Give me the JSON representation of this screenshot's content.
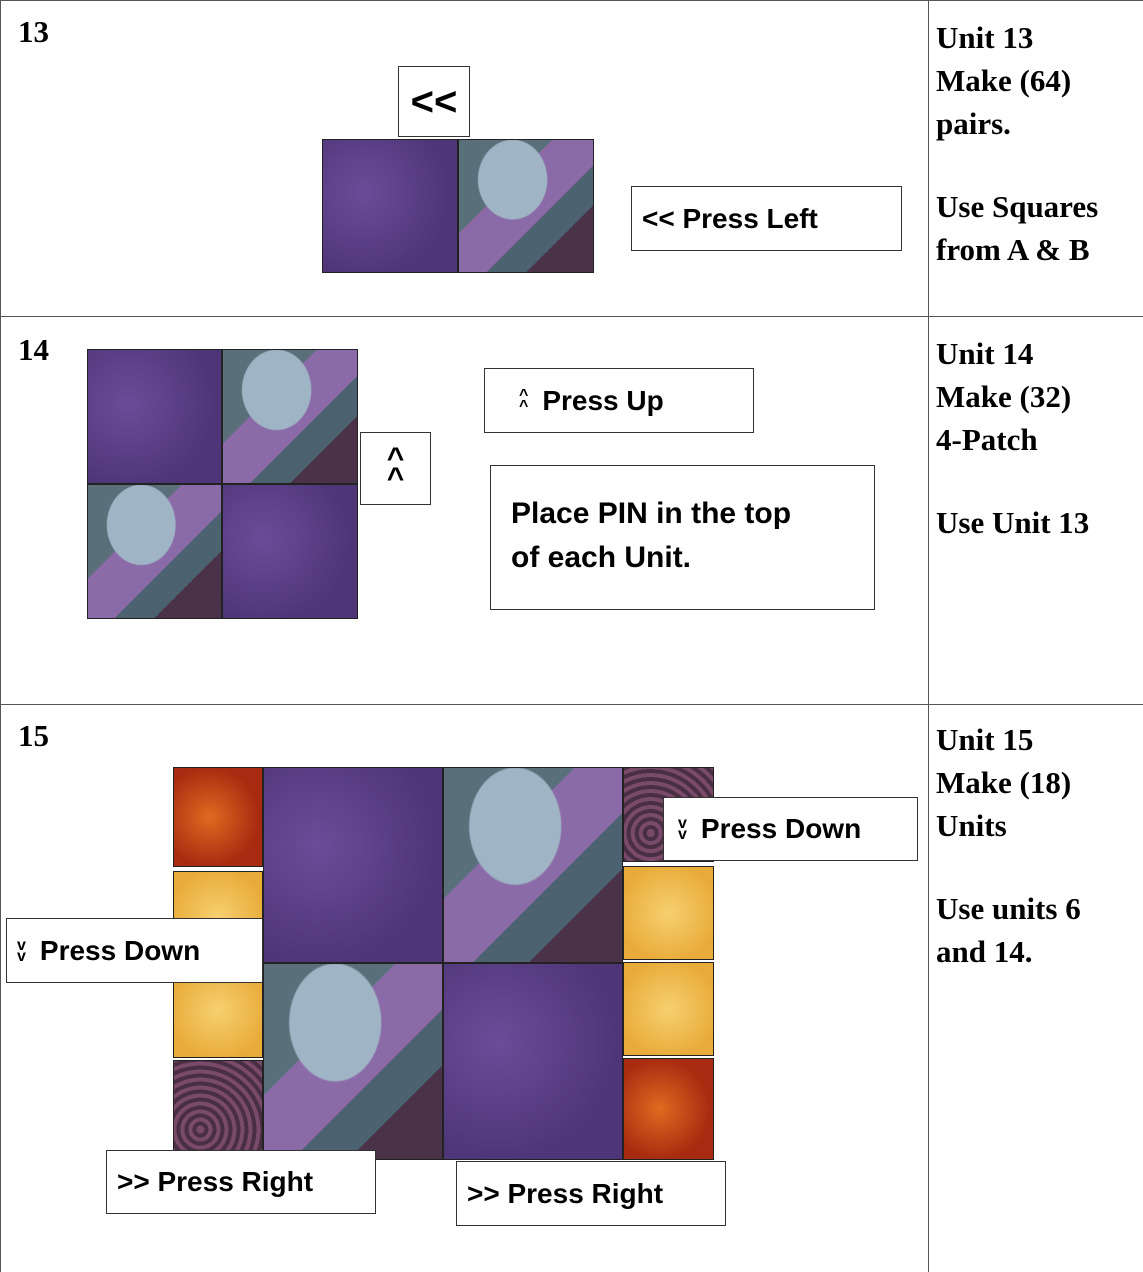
{
  "rows": [
    {
      "number": "13",
      "notes": [
        "Unit 13",
        "Make (64)",
        "pairs.",
        "Use Squares",
        "from A & B"
      ],
      "labels": {
        "seam": "<<",
        "press": "<< Press Left"
      }
    },
    {
      "number": "14",
      "notes": [
        "Unit 14",
        "Make (32)",
        "4-Patch",
        "Use Unit 13"
      ],
      "labels": {
        "seam_arrow": [
          "^",
          "^"
        ],
        "press_arrow": [
          "^",
          "^"
        ],
        "press": "Press Up",
        "pin": [
          "Place PIN in the top",
          "of each Unit."
        ]
      }
    },
    {
      "number": "15",
      "notes": [
        "Unit 15",
        "Make (18)",
        "Units",
        "Use units 6",
        "and 14."
      ],
      "labels": {
        "down_right_arrow": [
          "v",
          "v"
        ],
        "down_right": "Press Down",
        "down_left_arrow": [
          "v",
          "v"
        ],
        "down_left": "Press Down",
        "right_1": ">> Press Right",
        "right_2": ">> Press Right"
      }
    }
  ]
}
